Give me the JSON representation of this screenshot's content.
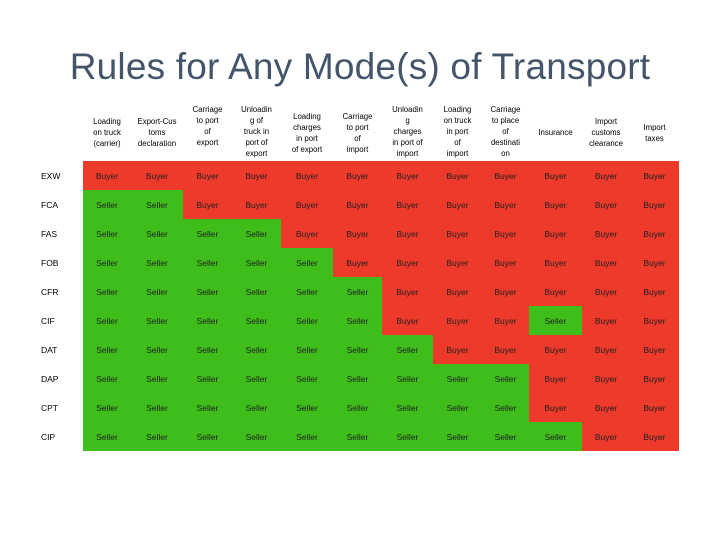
{
  "title": "Rules for Any Mode(s) of Transport",
  "headers": [
    "Loading\non truck\n(carrier)",
    "Export-Cus\ntoms\ndeclaration",
    "Carriage\nto port\nof\nexport",
    "Unloadin\ng of\ntruck in\nport of\nexport",
    "Loading\ncharges\nin port\nof export",
    "Carriage\nto port\nof\nimport",
    "Unloadin\ng\ncharges\nin port of\nimport",
    "Loading\non truck\nin port\nof\nimport",
    "Carriage\nto place\nof\ndestinati\non",
    "Insurance",
    "Import\ncustoms\nclearance",
    "Import\ntaxes"
  ],
  "rows": [
    {
      "term": "EXW",
      "cells": [
        "Buyer",
        "Buyer",
        "Buyer",
        "Buyer",
        "Buyer",
        "Buyer",
        "Buyer",
        "Buyer",
        "Buyer",
        "Buyer",
        "Buyer",
        "Buyer"
      ]
    },
    {
      "term": "FCA",
      "cells": [
        "Seller",
        "Seller",
        "Buyer",
        "Buyer",
        "Buyer",
        "Buyer",
        "Buyer",
        "Buyer",
        "Buyer",
        "Buyer",
        "Buyer",
        "Buyer"
      ]
    },
    {
      "term": "FAS",
      "cells": [
        "Seller",
        "Seller",
        "Seller",
        "Seller",
        "Buyer",
        "Buyer",
        "Buyer",
        "Buyer",
        "Buyer",
        "Buyer",
        "Buyer",
        "Buyer"
      ]
    },
    {
      "term": "FOB",
      "cells": [
        "Seller",
        "Seller",
        "Seller",
        "Seller",
        "Seller",
        "Buyer",
        "Buyer",
        "Buyer",
        "Buyer",
        "Buyer",
        "Buyer",
        "Buyer"
      ]
    },
    {
      "term": "CFR",
      "cells": [
        "Seller",
        "Seller",
        "Seller",
        "Seller",
        "Seller",
        "Seller",
        "Buyer",
        "Buyer",
        "Buyer",
        "Buyer",
        "Buyer",
        "Buyer"
      ]
    },
    {
      "term": "CIF",
      "cells": [
        "Seller",
        "Seller",
        "Seller",
        "Seller",
        "Seller",
        "Seller",
        "Buyer",
        "Buyer",
        "Buyer",
        "Seller",
        "Buyer",
        "Buyer"
      ]
    },
    {
      "term": "DAT",
      "cells": [
        "Seller",
        "Seller",
        "Seller",
        "Seller",
        "Seller",
        "Seller",
        "Seller",
        "Buyer",
        "Buyer",
        "Buyer",
        "Buyer",
        "Buyer"
      ]
    },
    {
      "term": "DAP",
      "cells": [
        "Seller",
        "Seller",
        "Seller",
        "Seller",
        "Seller",
        "Seller",
        "Seller",
        "Seller",
        "Seller",
        "Buyer",
        "Buyer",
        "Buyer"
      ]
    },
    {
      "term": "CPT",
      "cells": [
        "Seller",
        "Seller",
        "Seller",
        "Seller",
        "Seller",
        "Seller",
        "Seller",
        "Seller",
        "Seller",
        "Buyer",
        "Buyer",
        "Buyer"
      ]
    },
    {
      "term": "CIP",
      "cells": [
        "Seller",
        "Seller",
        "Seller",
        "Seller",
        "Seller",
        "Seller",
        "Seller",
        "Seller",
        "Seller",
        "Seller",
        "Buyer",
        "Buyer"
      ]
    }
  ],
  "colors": {
    "buyer": "#ee3a2b",
    "seller": "#3fbe1b"
  }
}
